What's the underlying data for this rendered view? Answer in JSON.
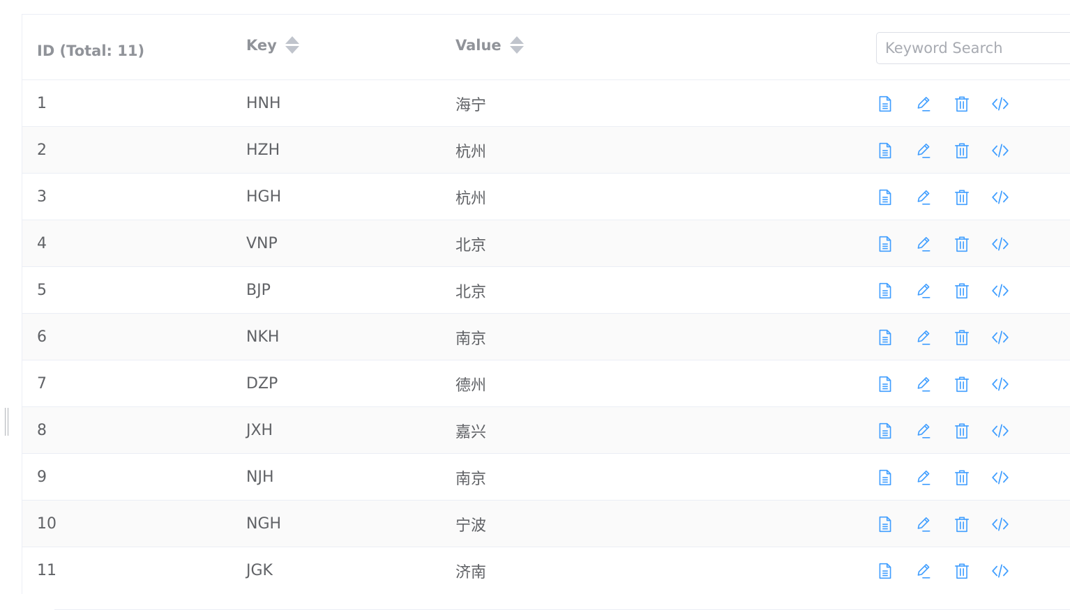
{
  "table": {
    "columns": {
      "id": "ID (Total: 11)",
      "key": "Key",
      "value": "Value"
    },
    "search": {
      "placeholder": "Keyword Search"
    },
    "rows": [
      {
        "id": "1",
        "key": "HNH",
        "value": "海宁"
      },
      {
        "id": "2",
        "key": "HZH",
        "value": "杭州"
      },
      {
        "id": "3",
        "key": "HGH",
        "value": "杭州"
      },
      {
        "id": "4",
        "key": "VNP",
        "value": "北京"
      },
      {
        "id": "5",
        "key": "BJP",
        "value": "北京"
      },
      {
        "id": "6",
        "key": "NKH",
        "value": "南京"
      },
      {
        "id": "7",
        "key": "DZP",
        "value": "德州"
      },
      {
        "id": "8",
        "key": "JXH",
        "value": "嘉兴"
      },
      {
        "id": "9",
        "key": "NJH",
        "value": "南京"
      },
      {
        "id": "10",
        "key": "NGH",
        "value": "宁波"
      },
      {
        "id": "11",
        "key": "JGK",
        "value": "济南"
      }
    ],
    "row_actions": [
      "document-icon",
      "edit-icon",
      "delete-icon",
      "code-icon"
    ]
  },
  "colors": {
    "accent": "#409eff",
    "header_text": "#909399",
    "body_text": "#606266",
    "border": "#ebeef5",
    "striped_row": "#fafafa"
  }
}
